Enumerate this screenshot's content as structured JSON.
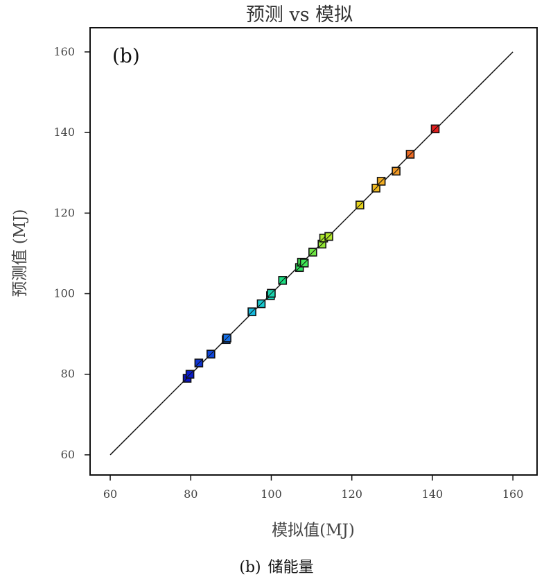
{
  "chart_data": {
    "type": "scatter",
    "title": "预测 vs 模拟",
    "panel_label": "(b)",
    "xlabel": "模拟值(MJ)",
    "ylabel": "预测值 (MJ)",
    "xlim": [
      55,
      166
    ],
    "ylim": [
      55,
      166
    ],
    "x_ticks": [
      "60",
      "80",
      "100",
      "120",
      "140",
      "160"
    ],
    "y_ticks": [
      "60",
      "80",
      "100",
      "120",
      "140",
      "160"
    ],
    "x_tick_values": [
      60,
      80,
      100,
      120,
      140,
      160
    ],
    "y_tick_values": [
      60,
      80,
      100,
      120,
      140,
      160
    ],
    "grid": false,
    "reference_line": {
      "from": [
        60,
        60
      ],
      "to": [
        160,
        160
      ]
    },
    "points": [
      {
        "x": 79.1,
        "y": 79.0
      },
      {
        "x": 79.8,
        "y": 80.0
      },
      {
        "x": 82.0,
        "y": 82.8
      },
      {
        "x": 85.0,
        "y": 85.0
      },
      {
        "x": 88.8,
        "y": 88.6
      },
      {
        "x": 89.0,
        "y": 89.0
      },
      {
        "x": 95.2,
        "y": 95.5
      },
      {
        "x": 97.5,
        "y": 97.5
      },
      {
        "x": 99.8,
        "y": 99.5
      },
      {
        "x": 100.0,
        "y": 100.1
      },
      {
        "x": 102.8,
        "y": 103.3
      },
      {
        "x": 107.0,
        "y": 106.5
      },
      {
        "x": 107.5,
        "y": 107.8
      },
      {
        "x": 108.2,
        "y": 107.6
      },
      {
        "x": 110.3,
        "y": 110.3
      },
      {
        "x": 112.6,
        "y": 112.3
      },
      {
        "x": 113.0,
        "y": 113.8
      },
      {
        "x": 114.3,
        "y": 114.2
      },
      {
        "x": 122.0,
        "y": 122.0
      },
      {
        "x": 126.0,
        "y": 126.2
      },
      {
        "x": 127.3,
        "y": 127.9
      },
      {
        "x": 131.0,
        "y": 130.4
      },
      {
        "x": 134.5,
        "y": 134.6
      },
      {
        "x": 140.7,
        "y": 140.9
      }
    ],
    "color_scale": [
      "#0a14c8",
      "#1460e6",
      "#18c8dc",
      "#1ee664",
      "#b4e628",
      "#f0d21e",
      "#f08c28",
      "#e61e1e"
    ]
  },
  "caption": {
    "label": "(b)",
    "text": "储能量"
  }
}
